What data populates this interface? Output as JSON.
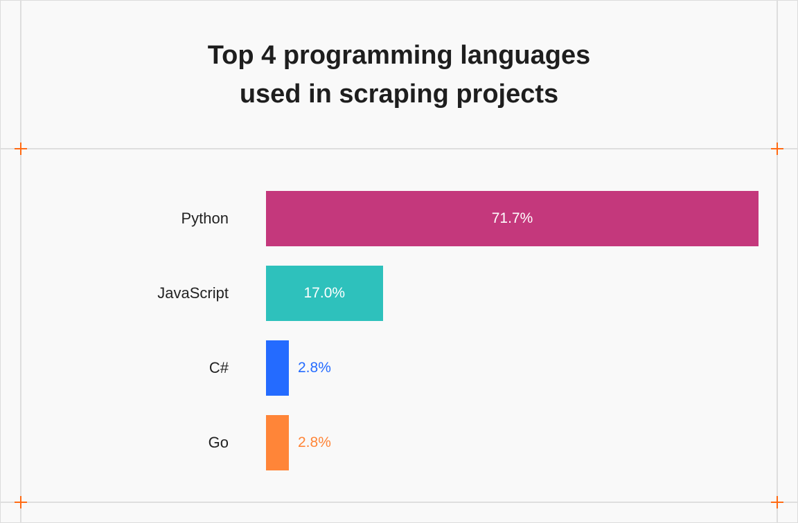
{
  "chart_data": {
    "type": "bar",
    "orientation": "horizontal",
    "title": "Top 4 programming languages used in scraping projects",
    "title_lines": [
      "Top 4 programming languages",
      "used in scraping projects"
    ],
    "categories": [
      "Python",
      "JavaScript",
      "C#",
      "Go"
    ],
    "values": [
      71.7,
      17.0,
      2.8,
      2.8
    ],
    "labels": [
      "71.7%",
      "17.0%",
      "2.8%",
      "2.8%"
    ],
    "colors": [
      "#c4387c",
      "#2ec1bc",
      "#246bff",
      "#ff8538"
    ],
    "unit": "%",
    "grid": false,
    "legend": "none"
  },
  "accent_color": "#ff6a13"
}
